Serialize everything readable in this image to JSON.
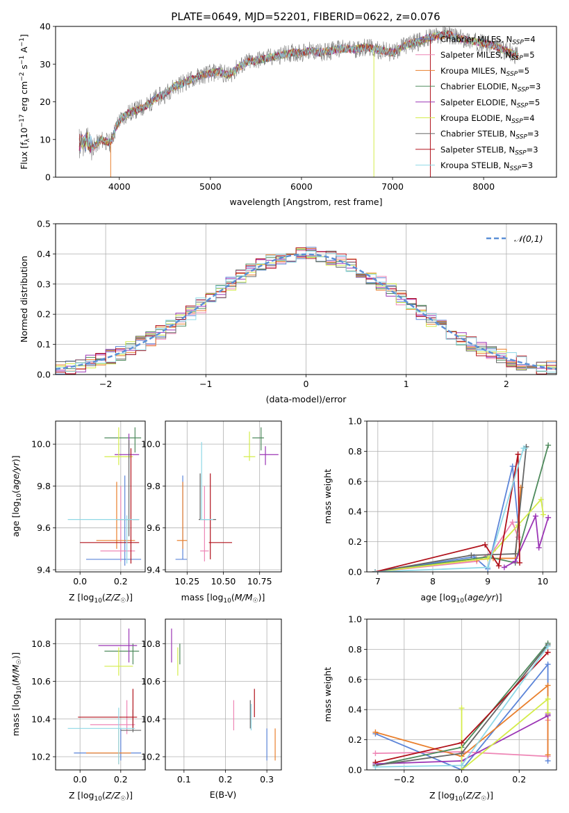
{
  "figure": {
    "title": "PLATE=0649, MJD=52201, FIBERID=0622, z=0.076"
  },
  "colors": {
    "Chabrier MILES": "#5b84d8",
    "Salpeter MILES": "#ee85b5",
    "Kroupa MILES": "#e97f2c",
    "Chabrier ELODIE": "#4e8a5c",
    "Salpeter ELODIE": "#9b35b5",
    "Kroupa ELODIE": "#d4ec4a",
    "Chabrier STELIB": "#666666",
    "Salpeter STELIB": "#b0101a",
    "Kroupa STELIB": "#8fd8e6"
  },
  "chart_data": [
    {
      "id": "spectrum",
      "type": "line",
      "xlabel": "wavelength [Angstrom, rest frame]",
      "ylabel": "Flux [f_λ10^-17 erg cm^-2 s^-1 A^-1]",
      "xlim": [
        3300,
        8800
      ],
      "ylim": [
        0,
        40
      ],
      "xticks": [
        4000,
        5000,
        6000,
        7000,
        8000
      ],
      "yticks": [
        0,
        10,
        20,
        30,
        40
      ],
      "legend_position": "right",
      "legend": [
        {
          "name": "Chabrier MILES",
          "nssp": "4"
        },
        {
          "name": "Salpeter MILES",
          "nssp": "5"
        },
        {
          "name": "Kroupa MILES",
          "nssp": "5"
        },
        {
          "name": "Chabrier ELODIE",
          "nssp": "3"
        },
        {
          "name": "Salpeter ELODIE",
          "nssp": "5"
        },
        {
          "name": "Kroupa ELODIE",
          "nssp": "4"
        },
        {
          "name": "Chabrier STELIB",
          "nssp": "3"
        },
        {
          "name": "Salpeter STELIB",
          "nssp": "3"
        },
        {
          "name": "Kroupa STELIB",
          "nssp": "3"
        }
      ],
      "spectrum_points": [
        [
          3560,
          9
        ],
        [
          3650,
          9.5
        ],
        [
          3720,
          8
        ],
        [
          3800,
          10
        ],
        [
          3900,
          9
        ],
        [
          3960,
          13
        ],
        [
          4000,
          15
        ],
        [
          4100,
          17
        ],
        [
          4200,
          18
        ],
        [
          4300,
          19
        ],
        [
          4400,
          21
        ],
        [
          4500,
          22
        ],
        [
          4600,
          24
        ],
        [
          4700,
          25
        ],
        [
          4800,
          26
        ],
        [
          4900,
          27
        ],
        [
          5000,
          27.5
        ],
        [
          5100,
          28
        ],
        [
          5200,
          27
        ],
        [
          5300,
          29
        ],
        [
          5400,
          30.5
        ],
        [
          5500,
          31
        ],
        [
          5600,
          31.5
        ],
        [
          5700,
          32
        ],
        [
          5800,
          32.5
        ],
        [
          5900,
          33
        ],
        [
          6000,
          33
        ],
        [
          6100,
          33.5
        ],
        [
          6200,
          33
        ],
        [
          6300,
          33.5
        ],
        [
          6400,
          34
        ],
        [
          6500,
          34
        ],
        [
          6600,
          34
        ],
        [
          6700,
          34.5
        ],
        [
          6800,
          34
        ],
        [
          6900,
          33.5
        ],
        [
          7000,
          33
        ],
        [
          7100,
          34.5
        ],
        [
          7200,
          35.5
        ],
        [
          7300,
          36
        ],
        [
          7400,
          37
        ],
        [
          7500,
          37.5
        ],
        [
          7600,
          38
        ],
        [
          7700,
          37
        ],
        [
          7800,
          36.5
        ],
        [
          7900,
          36
        ],
        [
          8000,
          35.5
        ],
        [
          8100,
          35
        ],
        [
          8200,
          34
        ],
        [
          8300,
          33
        ],
        [
          8380,
          32
        ]
      ]
    },
    {
      "id": "residuals",
      "type": "line",
      "xlabel": "(data-model)/error",
      "ylabel": "Normed distribution",
      "xlim": [
        -2.5,
        2.5
      ],
      "ylim": [
        0,
        0.5
      ],
      "xticks": [
        -2,
        -1,
        0,
        1,
        2
      ],
      "xticklabels": [
        "−2",
        "−1",
        "0",
        "1",
        "2"
      ],
      "yticks": [
        0.0,
        0.1,
        0.2,
        0.3,
        0.4,
        0.5
      ],
      "legend": "𝒩(0,1)",
      "gaussian_sigma": 1.0
    },
    {
      "id": "age_vs_Z",
      "type": "scatter",
      "xlabel": "Z [log10(Z/Z☉)]",
      "ylabel": "age [log10(age/yr)]",
      "xlim": [
        -0.12,
        0.32
      ],
      "ylim": [
        9.39,
        10.11
      ],
      "xticks": [
        0.0,
        0.2
      ],
      "yticks": [
        9.4,
        9.6,
        9.8,
        10.0
      ],
      "points": [
        {
          "model": "Chabrier MILES",
          "x": 0.22,
          "xlo": 0.03,
          "xhi": 0.3,
          "y": 9.45,
          "ylo": 9.42,
          "yhi": 9.85
        },
        {
          "model": "Salpeter MILES",
          "x": 0.2,
          "xlo": 0.1,
          "xhi": 0.27,
          "y": 9.49,
          "ylo": 9.44,
          "yhi": 9.8
        },
        {
          "model": "Kroupa MILES",
          "x": 0.18,
          "xlo": 0.08,
          "xhi": 0.27,
          "y": 9.54,
          "ylo": 9.5,
          "yhi": 9.82
        },
        {
          "model": "Chabrier ELODIE",
          "x": 0.27,
          "xlo": 0.12,
          "xhi": 0.3,
          "y": 10.03,
          "ylo": 9.96,
          "yhi": 10.08
        },
        {
          "model": "Salpeter ELODIE",
          "x": 0.24,
          "xlo": 0.17,
          "xhi": 0.29,
          "y": 9.95,
          "ylo": 9.93,
          "yhi": 10.05
        },
        {
          "model": "Kroupa ELODIE",
          "x": 0.19,
          "xlo": 0.12,
          "xhi": 0.26,
          "y": 9.94,
          "ylo": 9.9,
          "yhi": 10.08
        },
        {
          "model": "Chabrier STELIB",
          "x": 0.24,
          "xlo": 0.18,
          "xhi": 0.29,
          "y": 9.64,
          "ylo": 9.56,
          "yhi": 10.02
        },
        {
          "model": "Salpeter STELIB",
          "x": 0.25,
          "xlo": 0.0,
          "xhi": 0.29,
          "y": 9.53,
          "ylo": 9.43,
          "yhi": 9.98
        },
        {
          "model": "Kroupa STELIB",
          "x": 0.23,
          "xlo": -0.06,
          "xhi": 0.29,
          "y": 9.64,
          "ylo": 9.43,
          "yhi": 9.66
        }
      ]
    },
    {
      "id": "age_vs_mass",
      "type": "scatter",
      "xlabel": "mass [log10(M/M☉)]",
      "ylabel": "",
      "xlim": [
        10.1,
        10.9
      ],
      "ylim": [
        9.39,
        10.11
      ],
      "xticks": [
        10.25,
        10.5,
        10.75
      ],
      "xticklabels": [
        "10.25",
        "10.50",
        "10.75"
      ],
      "yticks": [
        9.4,
        9.6,
        9.8,
        10.0
      ],
      "points": [
        {
          "model": "Chabrier MILES",
          "x": 10.22,
          "xlo": 10.17,
          "xhi": 10.25,
          "y": 9.45,
          "ylo": 9.45,
          "yhi": 9.85
        },
        {
          "model": "Salpeter MILES",
          "x": 10.37,
          "xlo": 10.34,
          "xhi": 10.4,
          "y": 9.49,
          "ylo": 9.44,
          "yhi": 9.8
        },
        {
          "model": "Kroupa MILES",
          "x": 10.22,
          "xlo": 10.18,
          "xhi": 10.25,
          "y": 9.54,
          "ylo": 9.5,
          "yhi": 9.82
        },
        {
          "model": "Chabrier ELODIE",
          "x": 10.76,
          "xlo": 10.7,
          "xhi": 10.78,
          "y": 10.03,
          "ylo": 9.97,
          "yhi": 10.08
        },
        {
          "model": "Salpeter ELODIE",
          "x": 10.79,
          "xlo": 10.75,
          "xhi": 10.88,
          "y": 9.95,
          "ylo": 9.9,
          "yhi": 9.99
        },
        {
          "model": "Kroupa ELODIE",
          "x": 10.68,
          "xlo": 10.64,
          "xhi": 10.72,
          "y": 9.94,
          "ylo": 9.92,
          "yhi": 10.06
        },
        {
          "model": "Chabrier STELIB",
          "x": 10.34,
          "xlo": 10.33,
          "xhi": 10.45,
          "y": 9.64,
          "ylo": 9.64,
          "yhi": 9.86
        },
        {
          "model": "Salpeter STELIB",
          "x": 10.41,
          "xlo": 10.4,
          "xhi": 10.56,
          "y": 9.53,
          "ylo": 9.45,
          "yhi": 9.86
        },
        {
          "model": "Kroupa STELIB",
          "x": 10.35,
          "xlo": 10.34,
          "xhi": 10.43,
          "y": 9.64,
          "ylo": 9.64,
          "yhi": 10.01
        }
      ]
    },
    {
      "id": "massweight_vs_age",
      "type": "line",
      "xlabel": "age [log10(age/yr)]",
      "ylabel": "mass weight",
      "xlim": [
        6.8,
        10.25
      ],
      "ylim": [
        0,
        1
      ],
      "xticks": [
        7,
        8,
        9,
        10
      ],
      "yticks": [
        0.0,
        0.2,
        0.4,
        0.6,
        0.8,
        1.0
      ],
      "series": [
        {
          "model": "Chabrier MILES",
          "x": [
            6.95,
            8.75,
            9.0,
            9.45,
            9.55
          ],
          "y": [
            0.0,
            0.1,
            0.02,
            0.7,
            0.33
          ]
        },
        {
          "model": "Salpeter MILES",
          "x": [
            6.95,
            8.8,
            9.1,
            9.45,
            9.55
          ],
          "y": [
            0.0,
            0.07,
            0.14,
            0.33,
            0.23
          ]
        },
        {
          "model": "Kroupa MILES",
          "x": [
            6.95,
            8.8,
            9.1,
            9.5,
            9.6
          ],
          "y": [
            0.0,
            0.08,
            0.09,
            0.09,
            0.56
          ]
        },
        {
          "model": "Chabrier ELODIE",
          "x": [
            6.95,
            9.0,
            9.5,
            10.1
          ],
          "y": [
            0.0,
            0.1,
            0.06,
            0.84
          ]
        },
        {
          "model": "Salpeter ELODIE",
          "x": [
            9.3,
            9.5,
            9.87,
            9.93,
            10.1
          ],
          "y": [
            0.03,
            0.07,
            0.37,
            0.16,
            0.36
          ]
        },
        {
          "model": "Kroupa ELODIE",
          "x": [
            6.95,
            9.0,
            9.55,
            9.97,
            10.01
          ],
          "y": [
            0.0,
            0.09,
            0.31,
            0.48,
            0.38
          ]
        },
        {
          "model": "Chabrier STELIB",
          "x": [
            6.95,
            8.7,
            9.5,
            9.7
          ],
          "y": [
            0.0,
            0.11,
            0.12,
            0.83
          ]
        },
        {
          "model": "Salpeter STELIB",
          "x": [
            6.95,
            8.95,
            9.2,
            9.55,
            9.58
          ],
          "y": [
            0.0,
            0.18,
            0.04,
            0.78,
            0.06
          ]
        },
        {
          "model": "Kroupa STELIB",
          "x": [
            6.95,
            9.0,
            9.65,
            9.68
          ],
          "y": [
            0.0,
            0.03,
            0.82,
            0.82
          ]
        }
      ]
    },
    {
      "id": "mass_vs_Z",
      "type": "scatter",
      "xlabel": "Z [log10(Z/Z☉)]",
      "ylabel": "mass [log10(M/M☉)]",
      "xlim": [
        -0.12,
        0.32
      ],
      "ylim": [
        10.13,
        10.93
      ],
      "xticks": [
        0.0,
        0.2
      ],
      "yticks": [
        10.2,
        10.4,
        10.6,
        10.8
      ],
      "points": [
        {
          "model": "Chabrier MILES",
          "x": 0.2,
          "xlo": -0.03,
          "xhi": 0.3,
          "y": 10.22,
          "ylo": 10.18,
          "yhi": 10.35
        },
        {
          "model": "Salpeter MILES",
          "x": 0.23,
          "xlo": 0.05,
          "xhi": 0.27,
          "y": 10.37,
          "ylo": 10.32,
          "yhi": 10.5
        },
        {
          "model": "Kroupa MILES",
          "x": 0.19,
          "xlo": 0.03,
          "xhi": 0.25,
          "y": 10.22,
          "ylo": 10.16,
          "yhi": 10.35
        },
        {
          "model": "Chabrier ELODIE",
          "x": 0.26,
          "xlo": 0.12,
          "xhi": 0.29,
          "y": 10.76,
          "ylo": 10.69,
          "yhi": 10.8
        },
        {
          "model": "Salpeter ELODIE",
          "x": 0.24,
          "xlo": 0.09,
          "xhi": 0.28,
          "y": 10.79,
          "ylo": 10.7,
          "yhi": 10.88
        },
        {
          "model": "Kroupa ELODIE",
          "x": 0.19,
          "xlo": 0.12,
          "xhi": 0.26,
          "y": 10.68,
          "ylo": 10.63,
          "yhi": 10.78
        },
        {
          "model": "Chabrier STELIB",
          "x": 0.26,
          "xlo": 0.2,
          "xhi": 0.3,
          "y": 10.34,
          "ylo": 10.33,
          "yhi": 10.45
        },
        {
          "model": "Salpeter STELIB",
          "x": 0.26,
          "xlo": -0.01,
          "xhi": 0.28,
          "y": 10.41,
          "ylo": 10.35,
          "yhi": 10.56
        },
        {
          "model": "Kroupa STELIB",
          "x": 0.19,
          "xlo": -0.06,
          "xhi": 0.27,
          "y": 10.35,
          "ylo": 10.16,
          "yhi": 10.46
        }
      ]
    },
    {
      "id": "mass_vs_ebv",
      "type": "scatter",
      "xlabel": "E(B-V)",
      "ylabel": "",
      "xlim": [
        0.055,
        0.335
      ],
      "ylim": [
        10.13,
        10.93
      ],
      "xticks": [
        0.1,
        0.2,
        0.3
      ],
      "yticks": [
        10.2,
        10.4,
        10.6,
        10.8
      ],
      "points": [
        {
          "model": "Chabrier MILES",
          "x": 0.3,
          "ylo": 10.18,
          "yhi": 10.35
        },
        {
          "model": "Salpeter MILES",
          "x": 0.22,
          "ylo": 10.34,
          "yhi": 10.5
        },
        {
          "model": "Kroupa MILES",
          "x": 0.32,
          "ylo": 10.18,
          "yhi": 10.35
        },
        {
          "model": "Chabrier ELODIE",
          "x": 0.09,
          "ylo": 10.69,
          "yhi": 10.8
        },
        {
          "model": "Salpeter ELODIE",
          "x": 0.07,
          "ylo": 10.7,
          "yhi": 10.88
        },
        {
          "model": "Kroupa ELODIE",
          "x": 0.085,
          "ylo": 10.63,
          "yhi": 10.78
        },
        {
          "model": "Chabrier STELIB",
          "x": 0.26,
          "ylo": 10.35,
          "yhi": 10.5
        },
        {
          "model": "Salpeter STELIB",
          "x": 0.27,
          "ylo": 10.41,
          "yhi": 10.56
        },
        {
          "model": "Kroupa STELIB",
          "x": 0.262,
          "ylo": 10.34,
          "yhi": 10.48
        }
      ]
    },
    {
      "id": "massweight_vs_Z",
      "type": "line",
      "xlabel": "Z [log10(Z/Z☉)]",
      "ylabel": "mass weight",
      "xlim": [
        -0.33,
        0.33
      ],
      "ylim": [
        0,
        1
      ],
      "xticks": [
        -0.2,
        0.0,
        0.2
      ],
      "xticklabels": [
        "−0.2",
        "0.0",
        "0.2"
      ],
      "yticks": [
        0.0,
        0.2,
        0.4,
        0.6,
        0.8,
        1.0
      ],
      "series": [
        {
          "model": "Chabrier MILES",
          "x": [
            -0.3,
            0.0,
            0.3,
            0.3
          ],
          "y": [
            0.24,
            0.0,
            0.7,
            0.06
          ]
        },
        {
          "model": "Salpeter MILES",
          "x": [
            -0.3,
            0.0,
            0.3,
            0.3
          ],
          "y": [
            0.11,
            0.12,
            0.09,
            0.33
          ]
        },
        {
          "model": "Kroupa MILES",
          "x": [
            -0.3,
            0.0,
            0.3,
            0.3
          ],
          "y": [
            0.25,
            0.09,
            0.56,
            0.1
          ]
        },
        {
          "model": "Chabrier ELODIE",
          "x": [
            -0.3,
            0.0,
            0.3
          ],
          "y": [
            0.03,
            0.15,
            0.84
          ]
        },
        {
          "model": "Salpeter ELODIE",
          "x": [
            -0.3,
            0.0,
            0.3,
            0.3
          ],
          "y": [
            0.04,
            0.06,
            0.36,
            0.37
          ]
        },
        {
          "model": "Kroupa ELODIE",
          "x": [
            0.0,
            0.0,
            0.3,
            0.3
          ],
          "y": [
            0.41,
            0.0,
            0.47,
            0.38
          ]
        },
        {
          "model": "Chabrier STELIB",
          "x": [
            -0.3,
            0.0,
            0.3
          ],
          "y": [
            0.03,
            0.11,
            0.83
          ]
        },
        {
          "model": "Salpeter STELIB",
          "x": [
            -0.3,
            0.0,
            0.3
          ],
          "y": [
            0.05,
            0.18,
            0.78
          ]
        },
        {
          "model": "Kroupa STELIB",
          "x": [
            -0.3,
            0.0,
            0.3
          ],
          "y": [
            0.02,
            0.03,
            0.82
          ]
        }
      ]
    }
  ]
}
